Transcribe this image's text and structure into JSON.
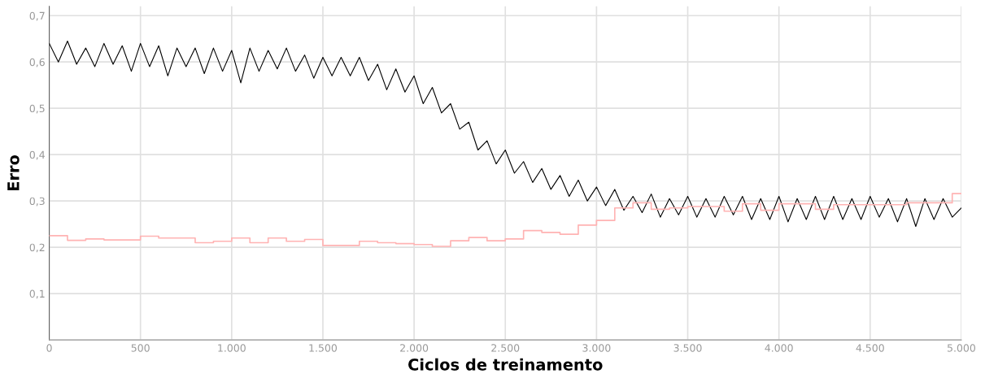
{
  "chart_data": {
    "type": "line",
    "xlabel": "Ciclos de treinamento",
    "ylabel": "Erro",
    "xlim": [
      0,
      5000
    ],
    "ylim": [
      0,
      0.72
    ],
    "xticks": [
      0,
      {
        "value": 500,
        "label": "500"
      },
      {
        "value": 1000,
        "label": "1.000"
      },
      {
        "value": 1500,
        "label": "1.500"
      },
      {
        "value": 2000,
        "label": "2.000"
      },
      {
        "value": 2500,
        "label": "2.500"
      },
      {
        "value": 3000,
        "label": "3.000"
      },
      {
        "value": 3500,
        "label": "3.500"
      },
      {
        "value": 4000,
        "label": "4.000"
      },
      {
        "value": 4500,
        "label": "4.500"
      },
      {
        "value": 5000,
        "label": "5.000"
      }
    ],
    "yticks": [
      {
        "value": 0,
        "label": null
      },
      {
        "value": 0.1,
        "label": "0,1"
      },
      {
        "value": 0.2,
        "label": "0,2"
      },
      {
        "value": 0.3,
        "label": "0,3"
      },
      {
        "value": 0.4,
        "label": "0,4"
      },
      {
        "value": 0.5,
        "label": "0,5"
      },
      {
        "value": 0.6,
        "label": "0,6"
      },
      {
        "value": 0.7,
        "label": "0,7"
      }
    ],
    "grid": true,
    "legend": false,
    "series": [
      {
        "color": "#000000",
        "x": [
          0,
          50,
          100,
          150,
          200,
          250,
          300,
          350,
          400,
          450,
          500,
          550,
          600,
          650,
          700,
          750,
          800,
          850,
          900,
          950,
          1000,
          1050,
          1100,
          1150,
          1200,
          1250,
          1300,
          1350,
          1400,
          1450,
          1500,
          1550,
          1600,
          1650,
          1700,
          1750,
          1800,
          1850,
          1900,
          1950,
          2000,
          2050,
          2100,
          2150,
          2200,
          2250,
          2300,
          2350,
          2400,
          2450,
          2500,
          2550,
          2600,
          2650,
          2700,
          2750,
          2800,
          2850,
          2900,
          2950,
          3000,
          3050,
          3100,
          3150,
          3200,
          3250,
          3300,
          3350,
          3400,
          3450,
          3500,
          3550,
          3600,
          3650,
          3700,
          3750,
          3800,
          3850,
          3900,
          3950,
          4000,
          4050,
          4100,
          4150,
          4200,
          4250,
          4300,
          4350,
          4400,
          4450,
          4500,
          4550,
          4600,
          4650,
          4700,
          4750,
          4800,
          4850,
          4900,
          4950,
          5000
        ],
        "values": [
          0.64,
          0.6,
          0.645,
          0.595,
          0.63,
          0.59,
          0.64,
          0.595,
          0.635,
          0.58,
          0.64,
          0.59,
          0.635,
          0.57,
          0.63,
          0.59,
          0.63,
          0.575,
          0.63,
          0.58,
          0.625,
          0.555,
          0.63,
          0.58,
          0.625,
          0.585,
          0.63,
          0.58,
          0.615,
          0.565,
          0.61,
          0.57,
          0.61,
          0.57,
          0.61,
          0.56,
          0.595,
          0.54,
          0.585,
          0.535,
          0.57,
          0.51,
          0.545,
          0.49,
          0.51,
          0.455,
          0.47,
          0.41,
          0.43,
          0.38,
          0.41,
          0.36,
          0.385,
          0.34,
          0.37,
          0.325,
          0.355,
          0.31,
          0.345,
          0.3,
          0.33,
          0.29,
          0.325,
          0.28,
          0.31,
          0.275,
          0.315,
          0.265,
          0.305,
          0.27,
          0.31,
          0.265,
          0.305,
          0.265,
          0.31,
          0.27,
          0.31,
          0.26,
          0.305,
          0.26,
          0.31,
          0.255,
          0.305,
          0.26,
          0.31,
          0.26,
          0.31,
          0.26,
          0.305,
          0.26,
          0.31,
          0.265,
          0.305,
          0.255,
          0.305,
          0.245,
          0.305,
          0.26,
          0.305,
          0.265,
          0.285
        ]
      },
      {
        "type": "step",
        "color": "#ffb3b3",
        "x": [
          0,
          100,
          200,
          300,
          500,
          600,
          800,
          900,
          1000,
          1100,
          1200,
          1300,
          1400,
          1500,
          1700,
          1800,
          1900,
          2000,
          2100,
          2200,
          2300,
          2400,
          2500,
          2600,
          2700,
          2800,
          2900,
          3000,
          3100,
          3200,
          3300,
          3400,
          3500,
          3700,
          3800,
          3900,
          4000,
          4200,
          4300,
          4700,
          4950,
          5000
        ],
        "values": [
          0.225,
          0.215,
          0.218,
          0.216,
          0.224,
          0.22,
          0.21,
          0.213,
          0.22,
          0.21,
          0.22,
          0.213,
          0.217,
          0.204,
          0.213,
          0.21,
          0.208,
          0.206,
          0.202,
          0.214,
          0.221,
          0.214,
          0.218,
          0.236,
          0.232,
          0.228,
          0.248,
          0.258,
          0.285,
          0.296,
          0.282,
          0.285,
          0.288,
          0.278,
          0.294,
          0.28,
          0.294,
          0.282,
          0.292,
          0.296,
          0.316,
          0.316
        ]
      }
    ]
  }
}
